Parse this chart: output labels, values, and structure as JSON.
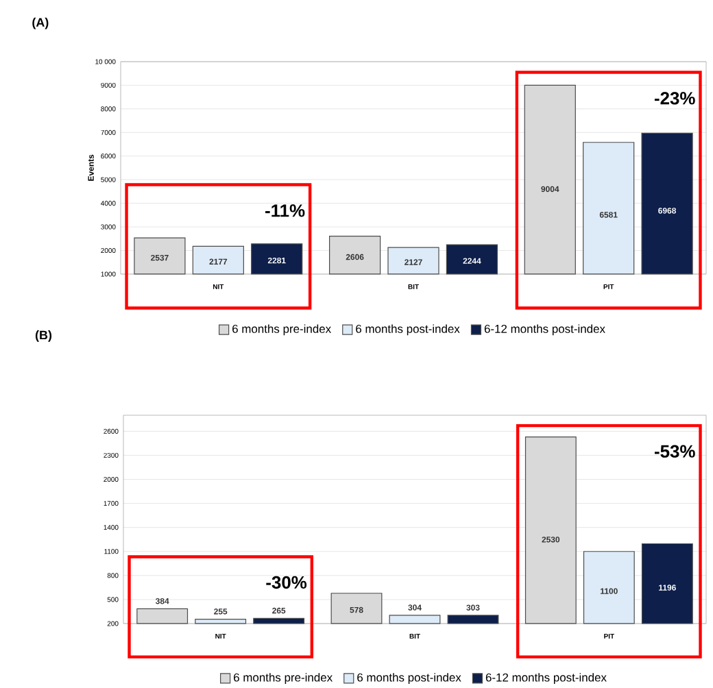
{
  "chart_data": [
    {
      "type": "bar",
      "title": "(A)",
      "ylabel": "Events",
      "categories": [
        "NIT",
        "BIT",
        "PIT"
      ],
      "series": [
        {
          "name": "6 months pre-index",
          "color": "#d9d9d9",
          "values": [
            2537,
            2606,
            9004
          ]
        },
        {
          "name": "6 months post-index",
          "color": "#ddeaf7",
          "values": [
            2177,
            2127,
            6581
          ]
        },
        {
          "name": "6-12 months post-index",
          "color": "#0d1f4a",
          "values": [
            2281,
            2244,
            6968
          ]
        }
      ],
      "ylim": [
        1000,
        10000
      ],
      "yticks": [
        1000,
        2000,
        3000,
        4000,
        5000,
        6000,
        7000,
        8000,
        9000,
        {
          "value": 10000,
          "label": "10 000"
        }
      ],
      "grid": "y",
      "legend": "bottom",
      "data_labels": true,
      "annotations": [
        "-11%",
        "-23%"
      ]
    },
    {
      "type": "bar",
      "title": "(B)",
      "categories": [
        "NIT",
        "BIT",
        "PIT"
      ],
      "series": [
        {
          "name": "6 months pre-index",
          "color": "#d9d9d9",
          "values": [
            384,
            578,
            2530
          ]
        },
        {
          "name": "6 months post-index",
          "color": "#ddeaf7",
          "values": [
            255,
            304,
            1100
          ]
        },
        {
          "name": "6-12 months post-index",
          "color": "#0d1f4a",
          "values": [
            265,
            303,
            1196
          ]
        }
      ],
      "ylim": [
        200,
        2800
      ],
      "yticks": [
        200,
        500,
        800,
        1100,
        1400,
        1700,
        2000,
        2300,
        2600
      ],
      "grid": "y",
      "legend": "bottom",
      "data_labels": true,
      "annotations": [
        "-30%",
        "-53%"
      ]
    }
  ]
}
